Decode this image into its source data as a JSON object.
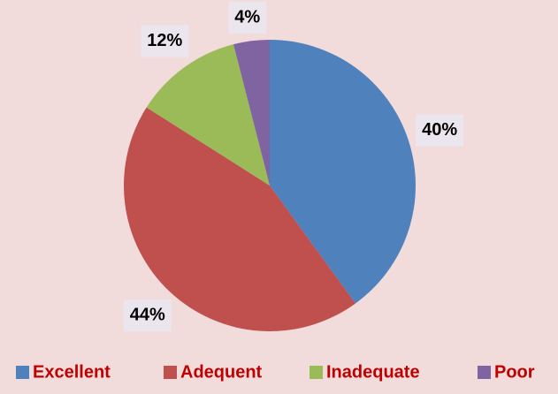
{
  "chart_data": {
    "type": "pie",
    "categories": [
      "Excellent",
      "Adequent",
      "Inadequate",
      "Poor"
    ],
    "values": [
      40,
      44,
      12,
      4
    ],
    "value_labels": [
      "40%",
      "44%",
      "12%",
      "4%"
    ],
    "colors": [
      "#4f81bd",
      "#c0504d",
      "#9bbb59",
      "#8064a2"
    ],
    "legend": "bottom"
  }
}
